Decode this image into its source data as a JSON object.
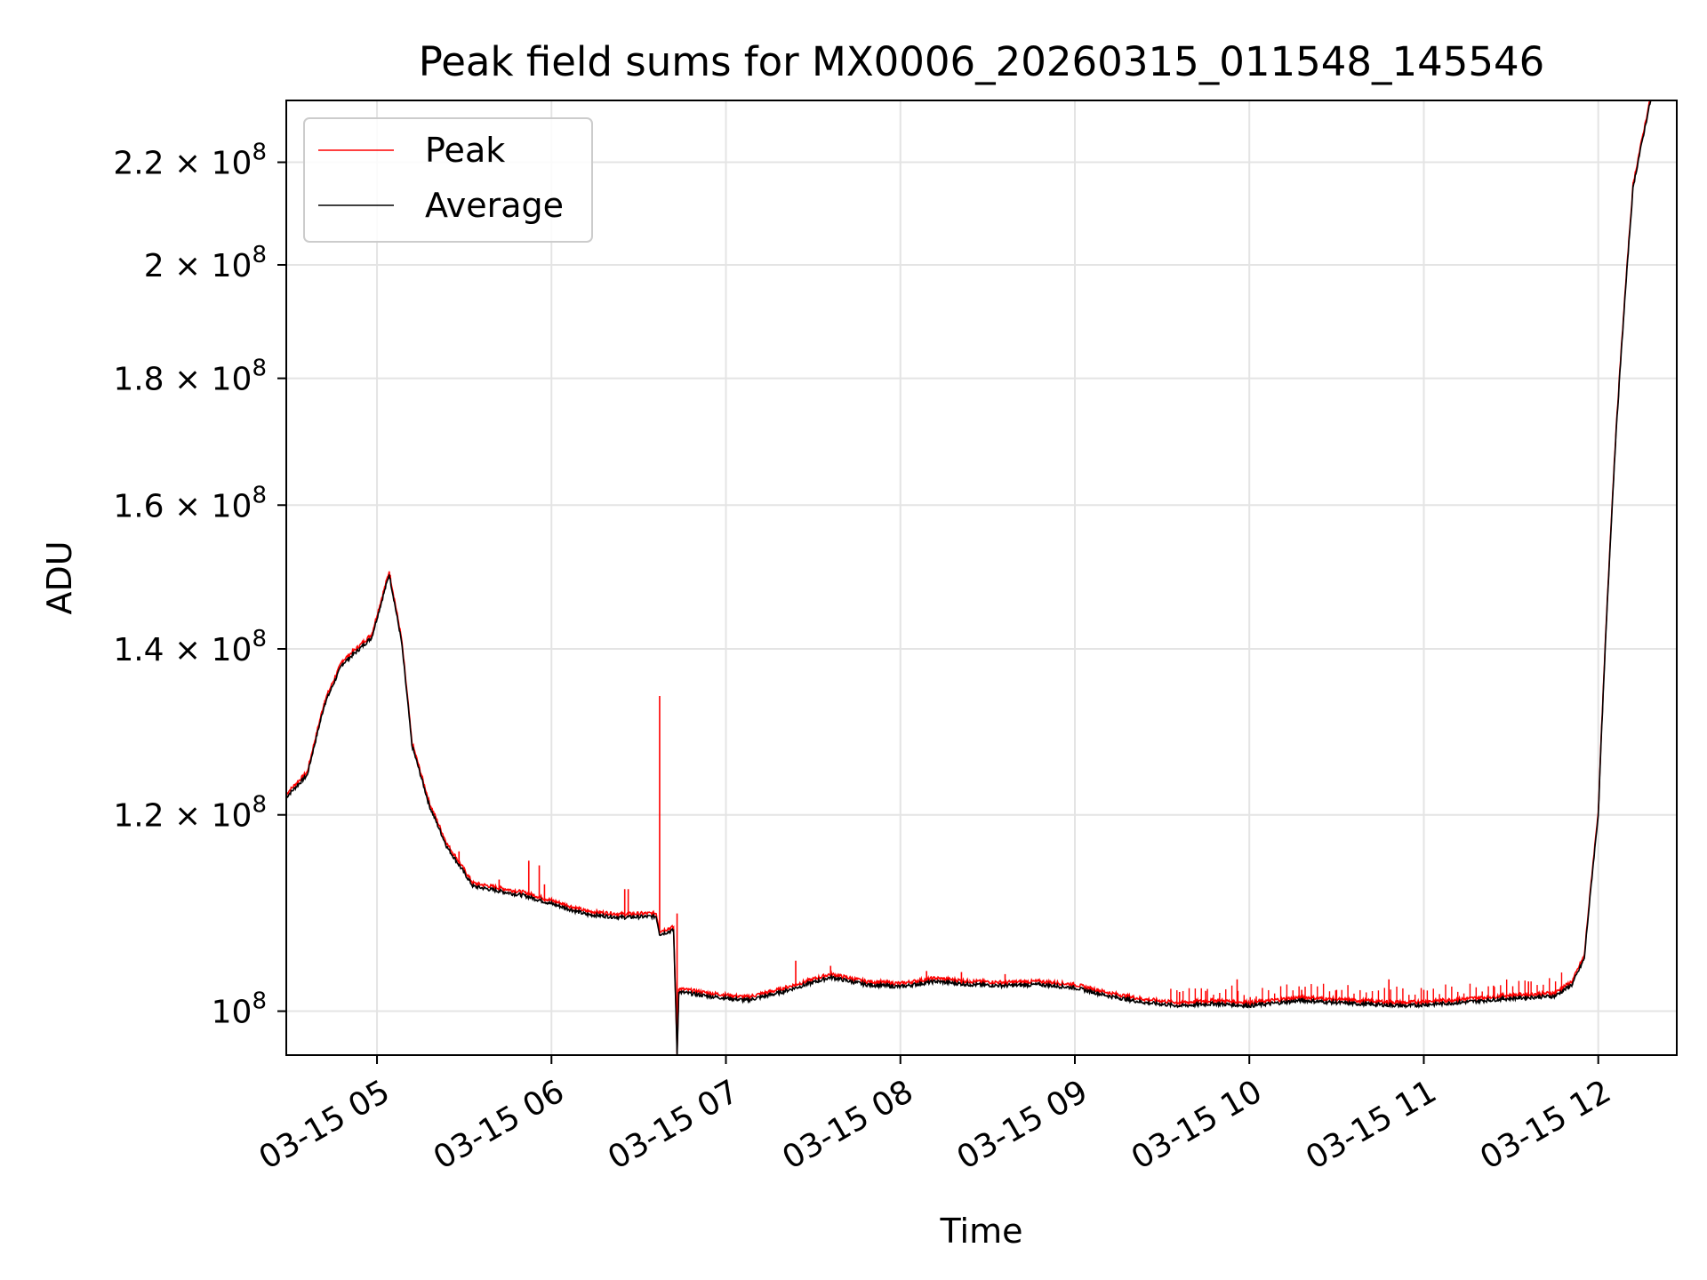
{
  "chart_data": {
    "type": "line",
    "title": "Peak field sums for MX0006_20260315_011548_145546",
    "xlabel": "Time",
    "ylabel": "ADU",
    "yscale": "log",
    "grid": true,
    "legend_position": "top-left",
    "x_unit": "hours",
    "x_range": [
      4.48,
      12.45
    ],
    "y_range": [
      96000000,
      233000000
    ],
    "x_ticks": [
      {
        "value": 5,
        "label": "03-15 05"
      },
      {
        "value": 6,
        "label": "03-15 06"
      },
      {
        "value": 7,
        "label": "03-15 07"
      },
      {
        "value": 8,
        "label": "03-15 08"
      },
      {
        "value": 9,
        "label": "03-15 09"
      },
      {
        "value": 10,
        "label": "03-15 10"
      },
      {
        "value": 11,
        "label": "03-15 11"
      },
      {
        "value": 12,
        "label": "03-15 12"
      }
    ],
    "y_ticks": [
      {
        "value": 100000000,
        "base": "10",
        "exp": "8"
      },
      {
        "value": 120000000,
        "base": "1.2 × 10",
        "exp": "8"
      },
      {
        "value": 140000000,
        "base": "1.4 × 10",
        "exp": "8"
      },
      {
        "value": 160000000,
        "base": "1.6 × 10",
        "exp": "8"
      },
      {
        "value": 180000000,
        "base": "1.8 × 10",
        "exp": "8"
      },
      {
        "value": 200000000,
        "base": "2 × 10",
        "exp": "8"
      },
      {
        "value": 220000000,
        "base": "2.2 × 10",
        "exp": "8"
      }
    ],
    "series": [
      {
        "name": "Peak",
        "color": "#ff0000",
        "spikes": [
          {
            "x": 5.47,
            "y": 116000000
          },
          {
            "x": 5.7,
            "y": 113000000
          },
          {
            "x": 5.87,
            "y": 115000000
          },
          {
            "x": 5.93,
            "y": 114500000
          },
          {
            "x": 5.96,
            "y": 112500000
          },
          {
            "x": 6.42,
            "y": 112000000
          },
          {
            "x": 6.44,
            "y": 112000000
          },
          {
            "x": 6.62,
            "y": 134000000
          },
          {
            "x": 6.72,
            "y": 109500000
          },
          {
            "x": 7.4,
            "y": 104800000
          },
          {
            "x": 7.6,
            "y": 104300000
          },
          {
            "x": 8.15,
            "y": 103800000
          },
          {
            "x": 8.35,
            "y": 103700000
          },
          {
            "x": 8.6,
            "y": 103500000
          },
          {
            "x": 9.6,
            "y": 101800000
          },
          {
            "x": 9.75,
            "y": 101900000
          },
          {
            "x": 9.93,
            "y": 103000000
          },
          {
            "x": 10.3,
            "y": 102000000
          },
          {
            "x": 10.5,
            "y": 102000000
          },
          {
            "x": 10.8,
            "y": 103000000
          },
          {
            "x": 11.0,
            "y": 102000000
          },
          {
            "x": 11.4,
            "y": 102400000
          },
          {
            "x": 11.6,
            "y": 102800000
          }
        ]
      },
      {
        "name": "Average",
        "color": "#000000",
        "points": [
          [
            4.48,
            122000000
          ],
          [
            4.6,
            124500000
          ],
          [
            4.7,
            133000000
          ],
          [
            4.8,
            138000000
          ],
          [
            4.9,
            140000000
          ],
          [
            4.97,
            141500000
          ],
          [
            5.07,
            150000000
          ],
          [
            5.14,
            141000000
          ],
          [
            5.2,
            128000000
          ],
          [
            5.3,
            121000000
          ],
          [
            5.4,
            116500000
          ],
          [
            5.55,
            112300000
          ],
          [
            5.7,
            111800000
          ],
          [
            5.85,
            111300000
          ],
          [
            6.0,
            110500000
          ],
          [
            6.2,
            109400000
          ],
          [
            6.4,
            109100000
          ],
          [
            6.6,
            109200000
          ],
          [
            6.62,
            107400000
          ],
          [
            6.7,
            107800000
          ],
          [
            6.72,
            96000000
          ],
          [
            6.73,
            101800000
          ],
          [
            6.9,
            101400000
          ],
          [
            7.12,
            101000000
          ],
          [
            7.3,
            101700000
          ],
          [
            7.6,
            103200000
          ],
          [
            7.8,
            102500000
          ],
          [
            8.0,
            102300000
          ],
          [
            8.2,
            102800000
          ],
          [
            8.4,
            102500000
          ],
          [
            8.6,
            102400000
          ],
          [
            8.8,
            102500000
          ],
          [
            9.0,
            102200000
          ],
          [
            9.2,
            101400000
          ],
          [
            9.4,
            100800000
          ],
          [
            9.6,
            100500000
          ],
          [
            9.8,
            100700000
          ],
          [
            10.0,
            100500000
          ],
          [
            10.3,
            101000000
          ],
          [
            10.6,
            100700000
          ],
          [
            10.9,
            100500000
          ],
          [
            11.2,
            100800000
          ],
          [
            11.5,
            101200000
          ],
          [
            11.75,
            101400000
          ],
          [
            11.85,
            102500000
          ],
          [
            11.92,
            105000000
          ],
          [
            12.0,
            120000000
          ],
          [
            12.1,
            170000000
          ],
          [
            12.2,
            215000000
          ],
          [
            12.3,
            233000000
          ]
        ]
      }
    ]
  }
}
